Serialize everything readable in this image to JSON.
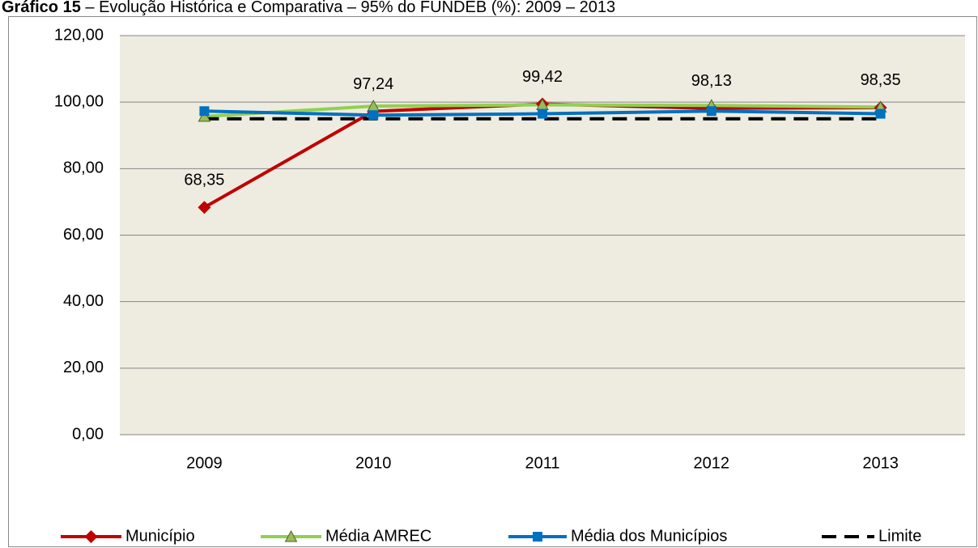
{
  "chart_data": {
    "type": "line",
    "title_label": "Gráfico 15",
    "title": "– Evolução Histórica e Comparativa – 95% do FUNDEB (%): 2009 – 2013",
    "categories": [
      "2009",
      "2010",
      "2011",
      "2012",
      "2013"
    ],
    "series": [
      {
        "name": "Município",
        "color": "#c00000",
        "marker": "diamond",
        "values": [
          68.35,
          97.24,
          99.42,
          98.13,
          98.35
        ],
        "value_labels": [
          "68,35",
          "97,24",
          "99,42",
          "98,13",
          "98,35"
        ]
      },
      {
        "name": "Média AMREC",
        "color": "#92d050",
        "marker": "triangle",
        "values": [
          95.7,
          98.8,
          99.2,
          99.0,
          98.5
        ]
      },
      {
        "name": "Média dos Municípios",
        "color": "#0070c0",
        "marker": "square",
        "values": [
          97.3,
          96.1,
          96.5,
          97.3,
          96.5
        ]
      },
      {
        "name": "Limite",
        "color": "#000000",
        "marker": "none",
        "dashed": true,
        "values": [
          95,
          95,
          95,
          95,
          95
        ]
      }
    ],
    "ylim": [
      0,
      120
    ],
    "yticks": [
      {
        "value": 0,
        "label": "0,00"
      },
      {
        "value": 20,
        "label": "20,00"
      },
      {
        "value": 40,
        "label": "40,00"
      },
      {
        "value": 60,
        "label": "60,00"
      },
      {
        "value": 80,
        "label": "80,00"
      },
      {
        "value": 100,
        "label": "100,00"
      },
      {
        "value": 120,
        "label": "120,00"
      }
    ],
    "grid": true,
    "legend": "bottom"
  }
}
